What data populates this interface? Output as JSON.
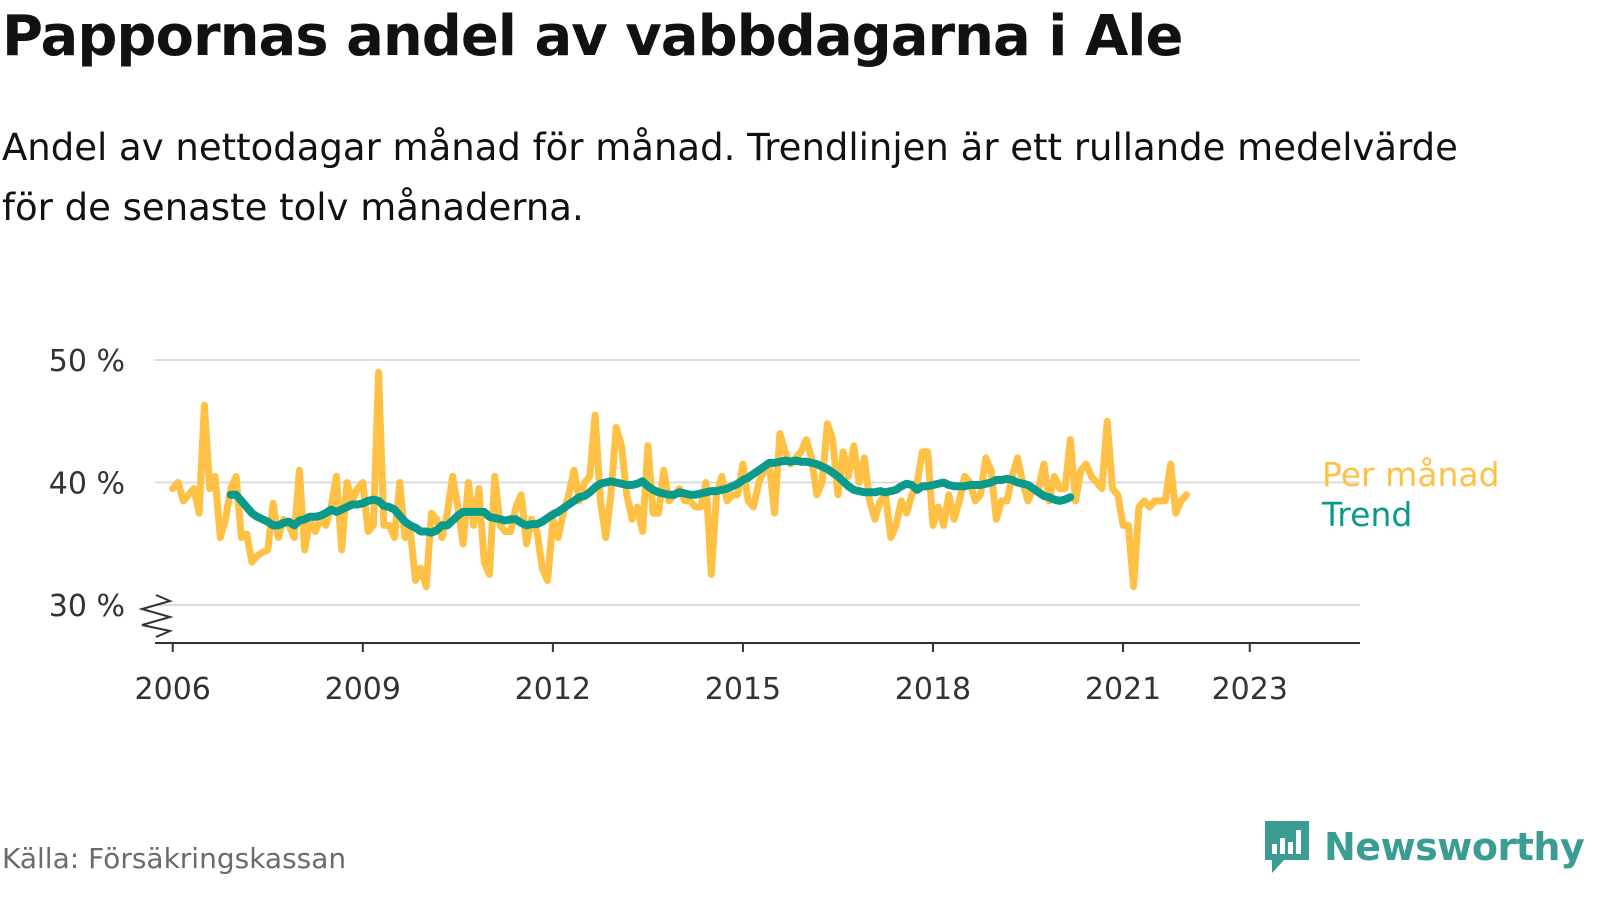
{
  "title": "Pappornas andel av vabbdagarna i Ale",
  "subtitle": "Andel av nettodagar månad för månad. Trendlinjen är ett rullande medelvärde för de senaste tolv månaderna.",
  "source": "Källa: Försäkringskassan",
  "brand": {
    "name": "Newsworthy",
    "icon": "newsworthy-logo-icon",
    "color": "#3a9c92"
  },
  "chart_data": {
    "type": "line",
    "ylim": [
      30,
      50
    ],
    "y_axis_break": true,
    "yticks": [
      30,
      40,
      50
    ],
    "ytick_labels": [
      "30 %",
      "40 %",
      "50 %"
    ],
    "xticks": [
      2006,
      2009,
      2012,
      2015,
      2018,
      2021,
      2023
    ],
    "xtick_labels": [
      "2006",
      "2009",
      "2012",
      "2015",
      "2018",
      "2021",
      "2023"
    ],
    "grid": true,
    "legend_position": "right, at line ends",
    "series": [
      {
        "name": "Per månad",
        "color": "#ffc145",
        "start": 2006.0,
        "step": 0.0833333,
        "values": [
          39.5,
          40,
          38.5,
          39,
          39.5,
          37.5,
          46.3,
          39.5,
          40.5,
          35.5,
          37,
          39.5,
          40.5,
          35.5,
          35.8,
          33.5,
          34,
          34.3,
          34.5,
          38.3,
          35.5,
          37,
          36.5,
          35.5,
          41,
          34.5,
          37,
          36,
          37,
          36.5,
          38,
          40.5,
          34.5,
          40,
          38.5,
          39.5,
          40,
          36,
          36.5,
          49,
          36.5,
          36.5,
          35.5,
          40,
          35.5,
          36,
          32,
          33,
          31.5,
          37.5,
          37,
          35.5,
          37.5,
          40.5,
          38,
          35,
          40,
          36.5,
          39.5,
          33.5,
          32.5,
          40.5,
          36.5,
          36,
          36,
          38,
          39,
          35,
          37,
          36,
          33,
          32,
          37,
          35.5,
          37.5,
          39,
          41,
          38.5,
          40,
          40.5,
          45.5,
          38.5,
          35.5,
          39,
          44.5,
          43,
          39,
          37,
          38,
          36,
          43,
          37.5,
          37.5,
          41,
          38.5,
          39,
          39.5,
          38.5,
          38.5,
          38,
          38,
          40,
          32.5,
          39,
          40.5,
          38.5,
          39,
          39,
          41.5,
          38.5,
          38,
          40,
          41,
          41.5,
          37.5,
          44,
          42.5,
          41.5,
          42,
          42.5,
          43.5,
          42,
          39,
          40,
          44.8,
          43.5,
          39,
          42.5,
          40.5,
          43,
          40,
          42,
          38.5,
          37,
          38.5,
          39,
          35.5,
          36.5,
          38.5,
          37.5,
          39,
          40,
          42.5,
          42.5,
          36.5,
          38,
          36.5,
          39,
          37,
          38.5,
          40.5,
          40,
          38.5,
          39,
          42,
          41,
          37,
          38.5,
          38.5,
          40.5,
          42,
          40,
          38.5,
          39.5,
          39.5,
          41.5,
          38.5,
          40.5,
          39.5,
          39.5,
          43.5,
          38.5,
          41,
          41.5,
          40.5,
          40,
          39.5,
          45,
          39.5,
          39,
          36.5,
          36.5,
          31.5,
          38,
          38.5,
          38,
          38.5,
          38.5,
          38.5,
          41.5,
          37.5,
          38.5,
          39
        ]
      },
      {
        "name": "Trend",
        "color": "#0a9a8c",
        "start": 2006.9167,
        "step": 0.0833333,
        "values": [
          39,
          39,
          38.5,
          38,
          37.5,
          37.2,
          37,
          36.8,
          36.5,
          36.5,
          36.7,
          36.8,
          36.5,
          36.9,
          37,
          37.2,
          37.2,
          37.3,
          37.5,
          37.8,
          37.6,
          37.8,
          38,
          38.2,
          38.2,
          38.3,
          38.5,
          38.6,
          38.5,
          38.1,
          38,
          37.8,
          37.3,
          36.8,
          36.5,
          36.3,
          36,
          36,
          35.9,
          36.1,
          36.5,
          36.5,
          36.9,
          37.3,
          37.6,
          37.6,
          37.6,
          37.6,
          37.6,
          37.2,
          37.1,
          37,
          36.9,
          37,
          37,
          36.7,
          36.5,
          36.6,
          36.6,
          36.8,
          37.1,
          37.4,
          37.6,
          37.9,
          38.2,
          38.5,
          38.8,
          38.9,
          39.2,
          39.6,
          39.9,
          40,
          40.1,
          40,
          39.9,
          39.8,
          39.8,
          39.9,
          40.1,
          39.7,
          39.4,
          39.2,
          39.1,
          39,
          39,
          39.2,
          39.1,
          39,
          39,
          39.1,
          39.2,
          39.3,
          39.3,
          39.4,
          39.5,
          39.7,
          39.9,
          40.2,
          40.4,
          40.7,
          41,
          41.3,
          41.6,
          41.6,
          41.7,
          41.8,
          41.7,
          41.8,
          41.7,
          41.7,
          41.6,
          41.5,
          41.3,
          41.1,
          40.8,
          40.5,
          40.1,
          39.7,
          39.4,
          39.3,
          39.2,
          39.2,
          39.2,
          39.3,
          39.2,
          39.3,
          39.4,
          39.7,
          39.9,
          39.8,
          39.4,
          39.7,
          39.7,
          39.8,
          39.9,
          40,
          39.8,
          39.7,
          39.7,
          39.7,
          39.8,
          39.8,
          39.8,
          39.9,
          40,
          40.2,
          40.2,
          40.3,
          40.2,
          40,
          39.9,
          39.8,
          39.5,
          39.2,
          38.9,
          38.8,
          38.6,
          38.5,
          38.6,
          38.8
        ]
      }
    ]
  }
}
